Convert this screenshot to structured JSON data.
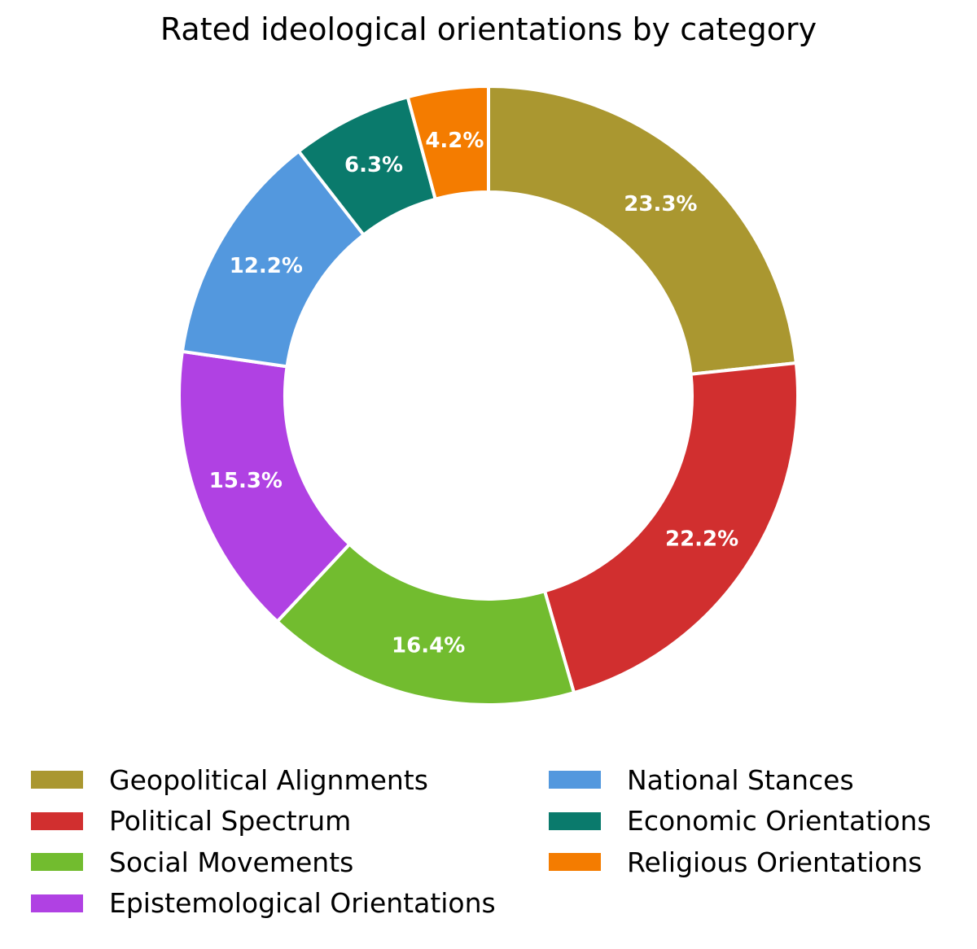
{
  "chart_data": {
    "type": "pie",
    "variant": "donut",
    "title": "Rated ideological orientations by category",
    "slices": [
      {
        "label": "Geopolitical Alignments",
        "value": 23.3,
        "display": "23.3%",
        "color": "#aa9730"
      },
      {
        "label": "Political Spectrum",
        "value": 22.2,
        "display": "22.2%",
        "color": "#d12f2f"
      },
      {
        "label": "Social Movements",
        "value": 16.4,
        "display": "16.4%",
        "color": "#72bc2f"
      },
      {
        "label": "Epistemological Orientations",
        "value": 15.3,
        "display": "15.3%",
        "color": "#b041e3"
      },
      {
        "label": "National Stances",
        "value": 12.2,
        "display": "12.2%",
        "color": "#5398de"
      },
      {
        "label": "Economic Orientations",
        "value": 6.3,
        "display": "6.3%",
        "color": "#0a7a6c"
      },
      {
        "label": "Religious Orientations",
        "value": 4.2,
        "display": "4.2%",
        "color": "#f47c00"
      }
    ],
    "start_position": "top",
    "direction": "clockwise",
    "legend_placement": "bottom",
    "legend_columns": 2
  }
}
